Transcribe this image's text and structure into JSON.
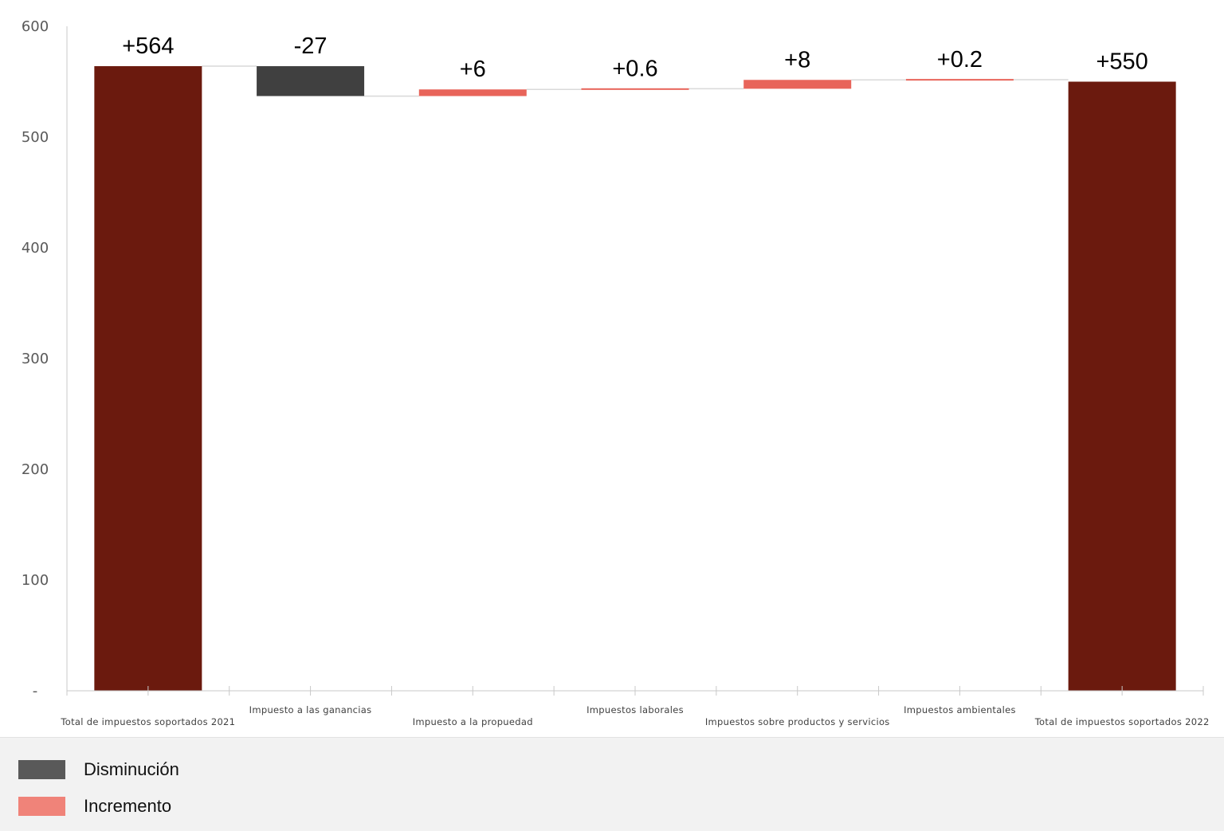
{
  "chart_data": {
    "type": "bar",
    "subtype": "waterfall",
    "categories": [
      "Total de impuestos soportados 2021",
      "Impuesto a las ganancias",
      "Impuesto a la propuedad",
      "Impuestos laborales",
      "Impuestos sobre productos y servicios",
      "Impuestos ambientales",
      "Total de impuestos soportados 2022"
    ],
    "values": [
      564,
      -27,
      6,
      0.6,
      8,
      0.2,
      550
    ],
    "data_labels": [
      "+564",
      "-27",
      "+6",
      "+0.6",
      "+8",
      "+0.2",
      "+550"
    ],
    "bar_kind": [
      "total",
      "decrease",
      "increase",
      "increase",
      "increase",
      "increase",
      "total"
    ],
    "ylim": [
      0,
      600
    ],
    "yticks": [
      0,
      100,
      200,
      300,
      400,
      500,
      600
    ],
    "ytick_labels": [
      "-",
      "100",
      "200",
      "300",
      "400",
      "500",
      "600"
    ],
    "grid": false,
    "legend_position": "bottom-left",
    "colors": {
      "total": "#6b1a0e",
      "decrease": "#404040",
      "increase": "#e8645a",
      "connector": "#d9d9d9",
      "axis": "#c8c8c8"
    }
  },
  "legend": {
    "items": [
      {
        "label": "Disminución",
        "color": "#595959"
      },
      {
        "label": "Incremento",
        "color": "#f08379"
      }
    ]
  }
}
